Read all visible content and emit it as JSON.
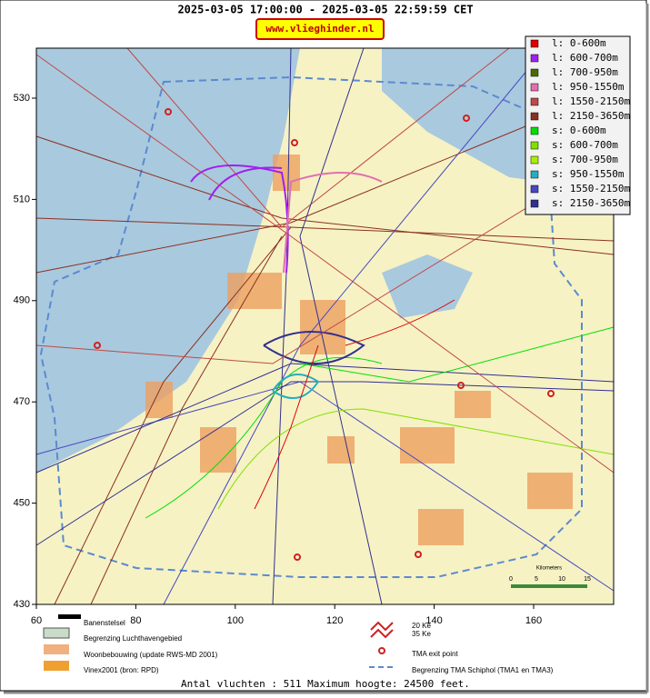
{
  "header": {
    "title": "2025-03-05 17:00:00 - 2025-03-05 22:59:59 CET",
    "site": "www.vlieghinder.nl"
  },
  "axes": {
    "xticks": [
      60,
      80,
      100,
      120,
      140,
      160
    ],
    "yticks": [
      430,
      450,
      470,
      490,
      510,
      530
    ]
  },
  "legend": {
    "items": [
      {
        "label": "l: 0-600m",
        "color": "#e00000"
      },
      {
        "label": "l: 600-700m",
        "color": "#a020f0"
      },
      {
        "label": "l: 700-950m",
        "color": "#4b6b00"
      },
      {
        "label": "l: 950-1550m",
        "color": "#e070b0"
      },
      {
        "label": "l: 1550-2150m",
        "color": "#c04848"
      },
      {
        "label": "l: 2150-3650m",
        "color": "#8b3020"
      },
      {
        "label": "s: 0-600m",
        "color": "#00e000"
      },
      {
        "label": "s: 600-700m",
        "color": "#80e000"
      },
      {
        "label": "s: 700-950m",
        "color": "#a8f000"
      },
      {
        "label": "s: 950-1550m",
        "color": "#20b0c0"
      },
      {
        "label": "s: 1550-2150m",
        "color": "#4848c0"
      },
      {
        "label": "s: 2150-3650m",
        "color": "#303090"
      }
    ]
  },
  "scale": {
    "title": "Kilometers",
    "ticks": [
      0,
      5,
      10,
      15
    ]
  },
  "key": {
    "items": [
      "Banenstelsel",
      "Begrenzing Luchthavengebied",
      "Woonbebouwing (update RWS-MD 2001)",
      "Vinex2001 (bron: RPD)",
      "20 Ke",
      "35 Ke",
      "TMA exit point",
      "Begrenzing TMA Schiphol  (TMA1 en TMA3)"
    ]
  },
  "footer": "Antal vluchten : 511 Maximum hoogte: 24500 feet."
}
